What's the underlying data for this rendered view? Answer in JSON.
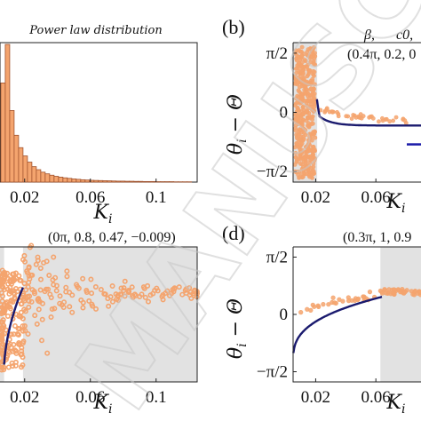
{
  "watermark": "MANUSCRIPT",
  "chart_data": [
    {
      "panel": "a",
      "type": "bar",
      "title": "Power law distribution",
      "xlabel": "K_i",
      "xticks": [
        "0.02",
        "0.06",
        "0.1"
      ],
      "xlim": [
        0.005,
        0.125
      ],
      "ylim": [
        0,
        1
      ],
      "bin_width": 0.0027,
      "x_start": 0.0055,
      "values": [
        0.72,
        1.0,
        0.52,
        0.34,
        0.25,
        0.19,
        0.145,
        0.112,
        0.09,
        0.072,
        0.06,
        0.05,
        0.042,
        0.036,
        0.031,
        0.027,
        0.023,
        0.02,
        0.017,
        0.015,
        0.013,
        0.012,
        0.011,
        0.01,
        0.009,
        0.008,
        0.007,
        0.007,
        0.006,
        0.006,
        0.005,
        0.005,
        0.004,
        0.004,
        0.004,
        0.003,
        0.003,
        0.003,
        0.003,
        0.002,
        0.002,
        0.002,
        0.002
      ],
      "bar_color": "#f4a46e",
      "edge_color": "#a0522d"
    },
    {
      "panel": "b",
      "label": "(b)",
      "type": "scatter",
      "params_header": [
        "β,",
        "c0,"
      ],
      "params": "(0.4π, 0.2, 0",
      "ylabel": "θi − Θ",
      "xlabel": "K_i",
      "xticks": [
        "0.02",
        "0.06"
      ],
      "yticks": [
        "π/2",
        "0",
        "−π/2"
      ],
      "xlim": [
        0.005,
        0.09
      ],
      "ylim": [
        -1.85,
        1.85
      ],
      "shaded_region": [
        0.005,
        0.021
      ],
      "legend_swatch_color": "#1a1aa8",
      "curve_color": "#1a1a6e",
      "point_color": "#f4a46e"
    },
    {
      "panel": "c",
      "type": "scatter",
      "params": "(0π, 0.8, 0.47, −0.009)",
      "xlabel": "K_i",
      "xticks": [
        "0.02",
        "0.06",
        "0.1"
      ],
      "xlim": [
        0.005,
        0.125
      ],
      "ylim": [
        -1.3,
        1.2
      ],
      "shaded_regions": [
        [
          0.005,
          0.0075
        ],
        [
          0.019,
          0.125
        ]
      ],
      "curve_color": "#1a1a6e",
      "point_color": "#f4a46e"
    },
    {
      "panel": "d",
      "label": "(d)",
      "type": "scatter",
      "params": "(0.3π, 1, 0.9",
      "ylabel": "θi − Θ",
      "xlabel": "K_i",
      "xticks": [
        "0.02",
        "0.06"
      ],
      "yticks": [
        "π/2",
        "0",
        "−π/2"
      ],
      "xlim": [
        0.005,
        0.09
      ],
      "ylim": [
        -1.85,
        1.85
      ],
      "shaded_region": [
        0.063,
        0.09
      ],
      "curve_color": "#1a1a6e",
      "point_color": "#f4a46e"
    }
  ]
}
